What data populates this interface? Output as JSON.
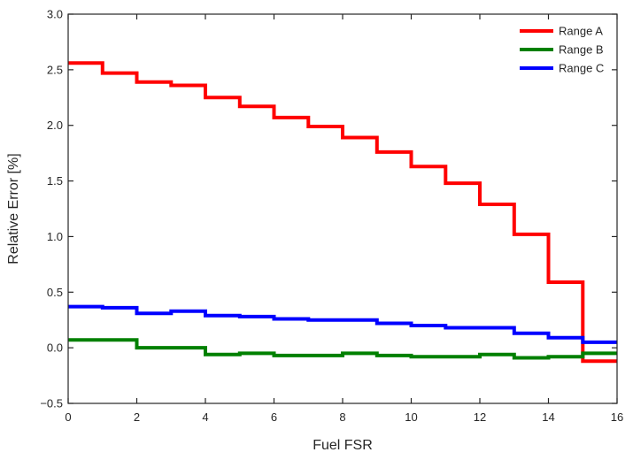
{
  "chart_data": {
    "type": "line",
    "step": "post",
    "xlabel": "Fuel FSR",
    "ylabel": "Relative Error [%]",
    "xlim": [
      0,
      16
    ],
    "ylim": [
      -0.5,
      3.0
    ],
    "xticks": [
      0,
      2,
      4,
      6,
      8,
      10,
      12,
      14,
      16
    ],
    "yticks": [
      -0.5,
      0.0,
      0.5,
      1.0,
      1.5,
      2.0,
      2.5,
      3.0
    ],
    "ytick_labels": [
      "−0.5",
      "0.0",
      "0.5",
      "1.0",
      "1.5",
      "2.0",
      "2.5",
      "3.0"
    ],
    "grid": false,
    "legend_position": "top-right",
    "x": [
      0,
      1,
      2,
      3,
      4,
      5,
      6,
      7,
      8,
      9,
      10,
      11,
      12,
      13,
      14,
      15,
      16
    ],
    "series": [
      {
        "name": "Range A",
        "color": "#ff0000",
        "values": [
          2.56,
          2.47,
          2.39,
          2.36,
          2.25,
          2.17,
          2.07,
          1.99,
          1.89,
          1.76,
          1.63,
          1.48,
          1.29,
          1.02,
          0.59,
          -0.12,
          -0.12
        ]
      },
      {
        "name": "Range B",
        "color": "#008000",
        "values": [
          0.07,
          0.07,
          0.0,
          0.0,
          -0.06,
          -0.05,
          -0.07,
          -0.07,
          -0.05,
          -0.07,
          -0.08,
          -0.08,
          -0.06,
          -0.09,
          -0.08,
          -0.05,
          -0.05
        ]
      },
      {
        "name": "Range C",
        "color": "#0000ff",
        "values": [
          0.37,
          0.36,
          0.31,
          0.33,
          0.29,
          0.28,
          0.26,
          0.25,
          0.25,
          0.22,
          0.2,
          0.18,
          0.18,
          0.13,
          0.09,
          0.05,
          0.05
        ]
      }
    ]
  }
}
